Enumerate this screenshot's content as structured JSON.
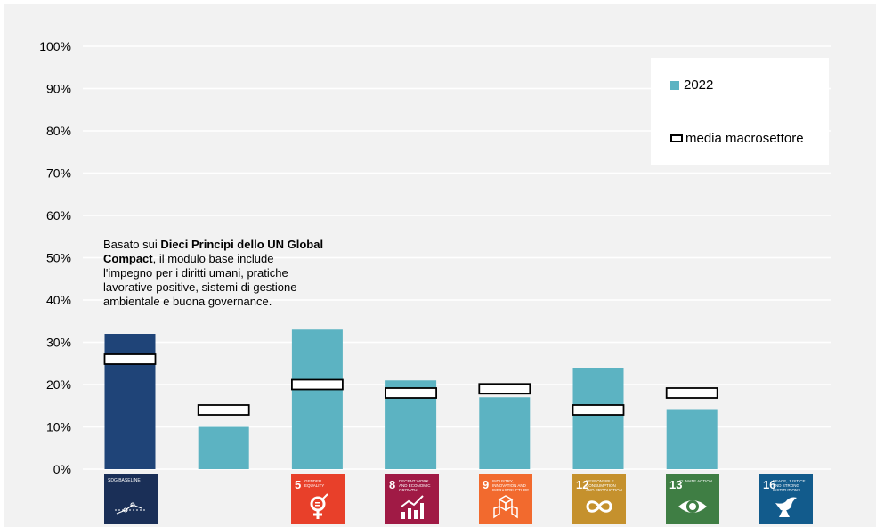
{
  "chart_data": {
    "type": "bar",
    "categories": [
      "SDG Baseline",
      "SDG 5",
      "SDG 8",
      "SDG 9",
      "SDG 12",
      "SDG 13",
      "SDG 16"
    ],
    "series": [
      {
        "name": "2022",
        "values": [
          32,
          10,
          33,
          21,
          17,
          24,
          14
        ]
      },
      {
        "name": "media macrosettore",
        "values": [
          26,
          14,
          20,
          18,
          19,
          14,
          18
        ]
      }
    ],
    "ylim": [
      0,
      100
    ],
    "yticks": [
      "0%",
      "10%",
      "20%",
      "30%",
      "40%",
      "50%",
      "60%",
      "70%",
      "80%",
      "90%",
      "100%"
    ],
    "grid": true,
    "legend_position": "top-right",
    "colors": {
      "bar": "#5cb3c2",
      "baseline_bar": "#1f4478",
      "average_marker": "#ffffff"
    },
    "annotation": {
      "part1": "Basato sui ",
      "bold": "Dieci Principi dello UN Global Compact",
      "part2": ", il  modulo base include l'impegno per i diritti umani, pratiche lavorative positive, sistemi di gestione ambientale e buona governance."
    }
  },
  "legend": {
    "bar": "2022",
    "average": "media macrosettore"
  },
  "sdg_icons": [
    {
      "number": "",
      "label": "SDG BASELINE",
      "color": "#1a2f57",
      "icon": "trend-line-icon"
    },
    {
      "number": "5",
      "label": "GENDER EQUALITY",
      "color": "#e8402a",
      "icon": "gender-equality-icon"
    },
    {
      "number": "8",
      "label": "DECENT WORK AND ECONOMIC GROWTH",
      "color": "#a01a45",
      "icon": "growth-chart-icon"
    },
    {
      "number": "9",
      "label": "INDUSTRY, INNOVATION AND INFRASTRUCTURE",
      "color": "#f26a2e",
      "icon": "cubes-icon"
    },
    {
      "number": "12",
      "label": "RESPONSIBLE CONSUMPTION AND PRODUCTION",
      "color": "#c5912d",
      "icon": "infinity-icon"
    },
    {
      "number": "13",
      "label": "CLIMATE ACTION",
      "color": "#3f7e44",
      "icon": "eye-globe-icon"
    },
    {
      "number": "16",
      "label": "PEACE, JUSTICE AND STRONG INSTITUTIONS",
      "color": "#125b8c",
      "icon": "dove-icon"
    }
  ]
}
